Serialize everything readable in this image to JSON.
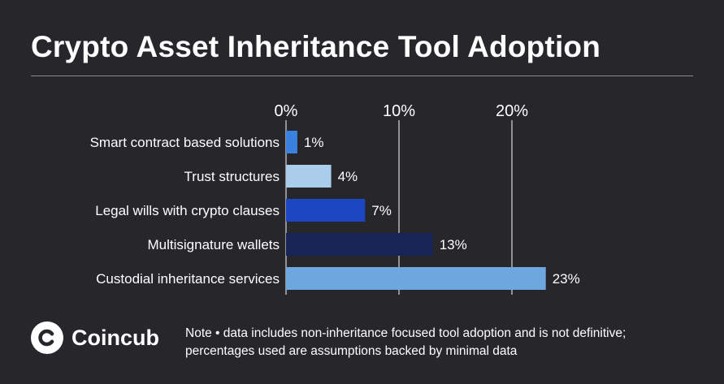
{
  "header": {
    "title": "Crypto Asset Inheritance Tool Adoption"
  },
  "chart_data": {
    "type": "bar",
    "orientation": "horizontal",
    "categories": [
      "Smart contract based solutions",
      "Trust structures",
      "Legal wills with crypto clauses",
      "Multisignature wallets",
      "Custodial inheritance services"
    ],
    "values": [
      1,
      4,
      7,
      13,
      23
    ],
    "data_labels": [
      "1%",
      "4%",
      "7%",
      "13%",
      "23%"
    ],
    "bar_colors": [
      "#3b82e0",
      "#a9cdea",
      "#1c47c2",
      "#172455",
      "#6ea7e0"
    ],
    "x_ticks": [
      0,
      10,
      20
    ],
    "x_tick_labels": [
      "0%",
      "10%",
      "20%"
    ],
    "xlim": [
      0,
      23
    ],
    "grid": true,
    "legend": "none"
  },
  "footer": {
    "brand_name": "Coincub",
    "note_line1": "Note • data includes non-inheritance focused tool adoption and is not definitive;",
    "note_line2": "percentages used are assumptions backed by minimal data"
  },
  "colors": {
    "background": "#26262b",
    "text": "#ffffff",
    "gridline": "#ffffff"
  }
}
